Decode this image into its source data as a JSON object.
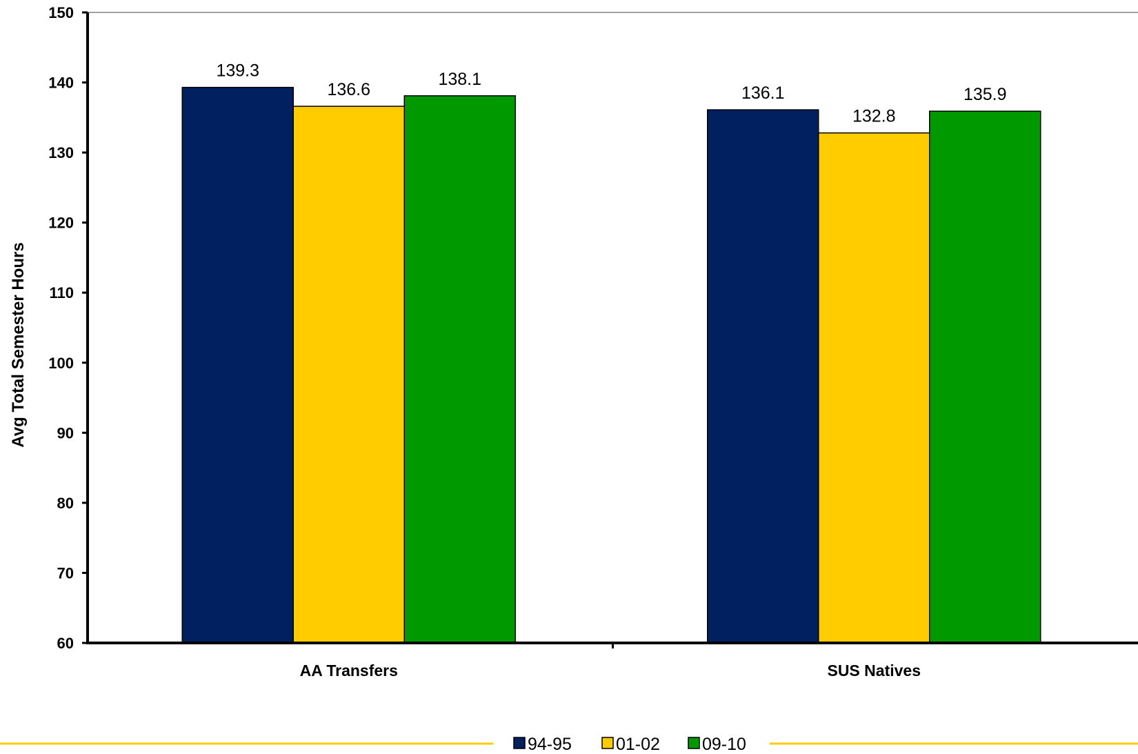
{
  "chart_data": {
    "type": "bar",
    "title": "",
    "xlabel": "",
    "ylabel": "Avg Total Semester Hours",
    "ylim": [
      60,
      150
    ],
    "ytick_step": 10,
    "categories": [
      "AA Transfers",
      "SUS Natives"
    ],
    "series": [
      {
        "name": "94-95",
        "color": "#002060",
        "values": [
          139.3,
          136.1
        ]
      },
      {
        "name": "01-02",
        "color": "#FFCC00",
        "values": [
          136.6,
          132.8
        ]
      },
      {
        "name": "09-10",
        "color": "#009900",
        "values": [
          138.1,
          135.9
        ]
      }
    ],
    "grid": false,
    "legend": "bottom",
    "decoration_color": "#FFCC00"
  }
}
